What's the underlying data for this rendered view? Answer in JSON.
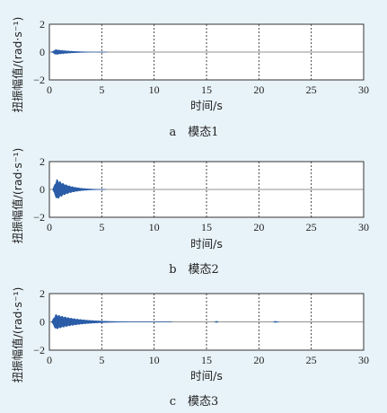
{
  "chart_data": [
    {
      "type": "line",
      "caption": "a　模态1",
      "xlabel": "时间/s",
      "ylabel": "扭振幅值/(rad·s⁻¹)",
      "xlim": [
        0,
        30
      ],
      "ylim": [
        -2,
        2
      ],
      "xticks": [
        "0",
        "5",
        "10",
        "15",
        "20",
        "25",
        "30"
      ],
      "yticks": [
        "2",
        "0",
        "−2"
      ],
      "grid": "x-dotted",
      "bursts": [
        {
          "start": 0.2,
          "peak_t": 0.6,
          "end": 5.5,
          "amp": 0.2,
          "decay": 1.6
        }
      ]
    },
    {
      "type": "line",
      "caption": "b　模态2",
      "xlabel": "时间/s",
      "ylabel": "扭振幅值/(rad·s⁻¹)",
      "xlim": [
        0,
        30
      ],
      "ylim": [
        -2,
        2
      ],
      "xticks": [
        "0",
        "5",
        "10",
        "15",
        "20",
        "25",
        "30"
      ],
      "yticks": [
        "2",
        "0",
        "−2"
      ],
      "grid": "x-dotted",
      "bursts": [
        {
          "start": 0.3,
          "peak_t": 0.7,
          "end": 5.4,
          "amp": 0.75,
          "decay": 1.2
        }
      ]
    },
    {
      "type": "line",
      "caption": "c　模态3",
      "xlabel": "时间/s",
      "ylabel": "扭振幅值/(rad·s⁻¹)",
      "xlim": [
        0,
        30
      ],
      "ylim": [
        -2,
        2
      ],
      "xticks": [
        "0",
        "5",
        "10",
        "15",
        "20",
        "25",
        "30"
      ],
      "yticks": [
        "2",
        "0",
        "−2"
      ],
      "grid": "x-dotted",
      "bursts": [
        {
          "start": 0.2,
          "peak_t": 0.6,
          "end": 11.7,
          "amp": 0.55,
          "decay": 2.2
        },
        {
          "start": 15.8,
          "peak_t": 15.9,
          "end": 16.1,
          "amp": 0.06,
          "decay": 0.5
        },
        {
          "start": 21.4,
          "peak_t": 21.5,
          "end": 21.9,
          "amp": 0.06,
          "decay": 0.5
        }
      ]
    }
  ],
  "colors": {
    "signal": "#2a5ca8",
    "background": "#e8f3f9",
    "plot_bg": "#ffffff"
  }
}
